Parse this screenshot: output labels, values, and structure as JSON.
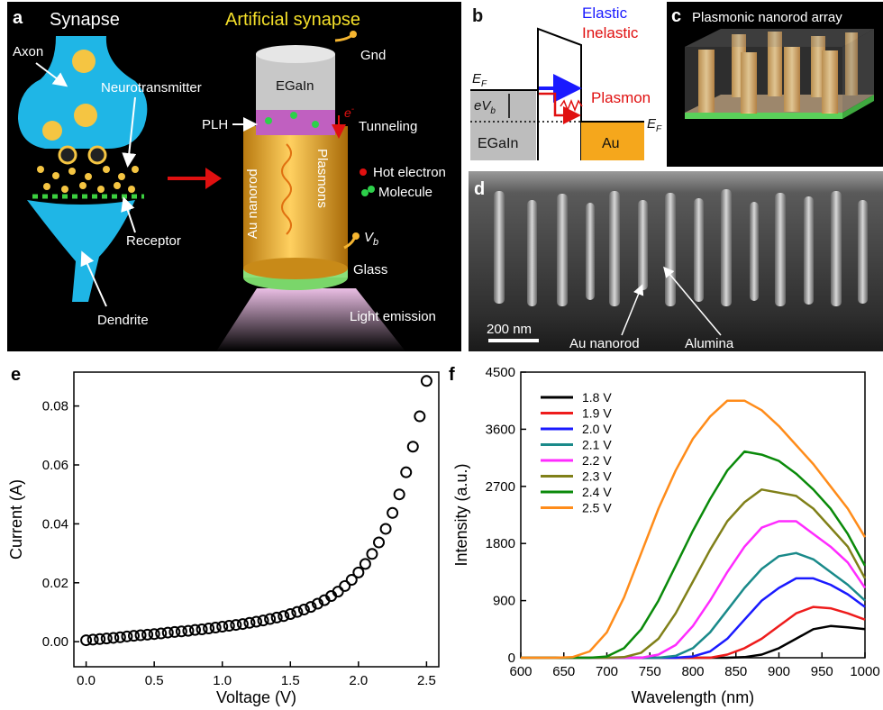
{
  "panels": {
    "a": {
      "label": "a",
      "synapse_title": "Synapse",
      "artificial_title": "Artificial synapse",
      "axon": "Axon",
      "neurotransmitter": "Neurotransmitter",
      "receptor": "Receptor",
      "dendrite": "Dendrite",
      "gnd": "Gnd",
      "egain": "EGaIn",
      "plh": "PLH",
      "electron": {
        "symbol": "e",
        "superscript": "-"
      },
      "tunneling": "Tunneling",
      "au_nanorod": "Au nanorod",
      "plasmons": "Plasmons",
      "hot_electron": "Hot electron",
      "molecule": "Molecule",
      "bias": {
        "symbol": "V",
        "subscript": "b"
      },
      "glass": "Glass",
      "light_emission": "Light emission"
    },
    "b": {
      "label": "b",
      "elastic": "Elastic",
      "inelastic": "Inelastic",
      "plasmon": "Plasmon",
      "fermi_left": {
        "symbol": "E",
        "subscript": "F"
      },
      "bias_energy": {
        "symbol": "eV",
        "subscript": "b"
      },
      "egain": "EGaIn",
      "au": "Au",
      "fermi_right": {
        "symbol": "E",
        "subscript": "F"
      }
    },
    "c": {
      "label": "c",
      "title": "Plasmonic nanorod array"
    },
    "d": {
      "label": "d",
      "scale_bar": "200 nm",
      "au_nanorod": "Au nanorod",
      "alumina": "Alumina"
    }
  },
  "chart_data": [
    {
      "type": "scatter",
      "panel_label": "e",
      "x_label": "Voltage (V)",
      "y_label": "Current (A)",
      "color": "#000000",
      "x": [
        0,
        0.05,
        0.1,
        0.15,
        0.2,
        0.25,
        0.3,
        0.35,
        0.4,
        0.45,
        0.5,
        0.55,
        0.6,
        0.65,
        0.7,
        0.75,
        0.8,
        0.85,
        0.9,
        0.95,
        1,
        1.05,
        1.1,
        1.15,
        1.2,
        1.25,
        1.3,
        1.35,
        1.4,
        1.45,
        1.5,
        1.55,
        1.6,
        1.65,
        1.7,
        1.75,
        1.8,
        1.85,
        1.9,
        1.95,
        2,
        2.05,
        2.1,
        2.15,
        2.2,
        2.25,
        2.3,
        2.35,
        2.4,
        2.45,
        2.5
      ],
      "values": [
        0.0005,
        0.0007,
        0.0009,
        0.0011,
        0.0013,
        0.0015,
        0.0018,
        0.002,
        0.0022,
        0.0024,
        0.0026,
        0.0028,
        0.0031,
        0.0033,
        0.0035,
        0.0037,
        0.004,
        0.0042,
        0.0045,
        0.0048,
        0.0051,
        0.0054,
        0.0057,
        0.006,
        0.0064,
        0.0068,
        0.0072,
        0.0077,
        0.0082,
        0.0087,
        0.0094,
        0.0101,
        0.0109,
        0.0118,
        0.0129,
        0.0141,
        0.0155,
        0.017,
        0.0189,
        0.021,
        0.0235,
        0.0264,
        0.0298,
        0.0337,
        0.0383,
        0.0437,
        0.05,
        0.0575,
        0.0662,
        0.0765,
        0.0885
      ],
      "xlim": [
        -0.09,
        2.59
      ],
      "xticks": [
        {
          "value": 0,
          "label": "0.0"
        },
        0.5,
        {
          "value": 1,
          "label": "1.0"
        },
        1.5,
        {
          "value": 2,
          "label": "2.0"
        },
        2.5
      ],
      "ylim": [
        -0.0085,
        0.0915
      ],
      "yticks": [
        {
          "value": 0,
          "label": "0.00"
        },
        0.02,
        0.04,
        0.06,
        0.08
      ]
    },
    {
      "type": "line",
      "panel_label": "f",
      "x_label": "Wavelength (nm)",
      "y_label": "Intensity (a.u.)",
      "legend": "upper left",
      "x": [
        600,
        620,
        640,
        660,
        680,
        700,
        720,
        740,
        760,
        780,
        800,
        820,
        840,
        860,
        880,
        900,
        920,
        940,
        960,
        980,
        1000
      ],
      "series": [
        {
          "name": "1.8 V",
          "color": "#000000",
          "values": [
            0,
            0,
            0,
            0,
            0,
            0,
            0,
            0,
            0,
            0,
            0,
            0,
            0,
            10,
            50,
            150,
            300,
            450,
            500,
            480,
            450
          ]
        },
        {
          "name": "1.9 V",
          "color": "#ee1c1c",
          "values": [
            0,
            0,
            0,
            0,
            0,
            0,
            0,
            0,
            0,
            0,
            0,
            0,
            50,
            150,
            300,
            500,
            700,
            800,
            780,
            700,
            600
          ]
        },
        {
          "name": "2.0 V",
          "color": "#1a1aff",
          "values": [
            0,
            0,
            0,
            0,
            0,
            0,
            0,
            0,
            0,
            0,
            20,
            100,
            300,
            600,
            900,
            1100,
            1250,
            1250,
            1150,
            1000,
            800
          ]
        },
        {
          "name": "2.1 V",
          "color": "#1a8a8a",
          "values": [
            0,
            0,
            0,
            0,
            0,
            0,
            0,
            0,
            0,
            30,
            150,
            400,
            750,
            1100,
            1400,
            1600,
            1650,
            1550,
            1350,
            1150,
            900
          ]
        },
        {
          "name": "2.2 V",
          "color": "#ff2bff",
          "values": [
            0,
            0,
            0,
            0,
            0,
            0,
            0,
            0,
            50,
            200,
            500,
            900,
            1350,
            1750,
            2050,
            2150,
            2150,
            1950,
            1750,
            1500,
            1100
          ]
        },
        {
          "name": "2.3 V",
          "color": "#808019",
          "values": [
            0,
            0,
            0,
            0,
            0,
            0,
            10,
            80,
            300,
            700,
            1200,
            1700,
            2150,
            2450,
            2650,
            2600,
            2550,
            2350,
            2050,
            1750,
            1250
          ]
        },
        {
          "name": "2.4 V",
          "color": "#0a8a0a",
          "values": [
            0,
            0,
            0,
            0,
            0,
            20,
            150,
            450,
            900,
            1450,
            2000,
            2500,
            2950,
            3250,
            3200,
            3100,
            2900,
            2650,
            2350,
            1950,
            1450
          ]
        },
        {
          "name": "2.5 V",
          "color": "#ff8c1a",
          "values": [
            0,
            0,
            0,
            10,
            100,
            400,
            950,
            1650,
            2350,
            2950,
            3450,
            3800,
            4050,
            4050,
            3900,
            3650,
            3350,
            3050,
            2700,
            2350,
            1900
          ]
        }
      ],
      "xlim": [
        600,
        1000
      ],
      "xticks": [
        600,
        650,
        700,
        750,
        800,
        850,
        900,
        950,
        1000
      ],
      "ylim": [
        0,
        4500
      ],
      "yticks": [
        0,
        900,
        1800,
        2700,
        3600,
        4500
      ]
    }
  ]
}
